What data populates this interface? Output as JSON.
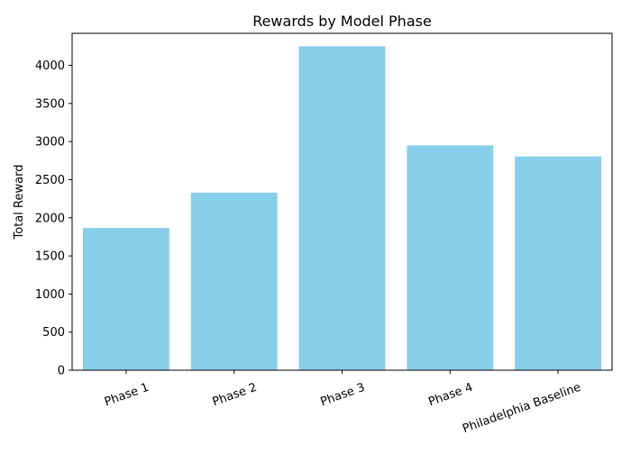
{
  "chart_data": {
    "type": "bar",
    "title": "Rewards by Model Phase",
    "xlabel": "",
    "ylabel": "Total Reward",
    "categories": [
      "Phase 1",
      "Phase 2",
      "Phase 3",
      "Phase 4",
      "Philadelphia Baseline"
    ],
    "values": [
      1865,
      2330,
      4250,
      2950,
      2805
    ],
    "ylim": [
      0,
      4420
    ],
    "yticks": [
      0,
      500,
      1000,
      1500,
      2000,
      2500,
      3000,
      3500,
      4000
    ],
    "bar_color": "#87ceeb",
    "grid": false,
    "legend": "none",
    "x_tick_rotation_deg": 20
  }
}
